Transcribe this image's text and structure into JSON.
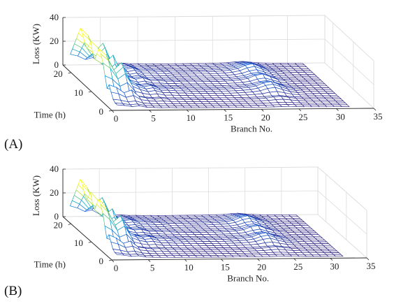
{
  "chart_data": [
    {
      "type": "surface",
      "panel_label": "(A)",
      "zlabel": "Loss (KW)",
      "ylabel": "Time (h)",
      "xlabel": "Branch No.",
      "xticks": [
        "0",
        "5",
        "10",
        "15",
        "20",
        "25",
        "30",
        "35"
      ],
      "yticks": [
        "0",
        "10",
        "20"
      ],
      "zticks": [
        "0",
        "20",
        "40"
      ],
      "xlim": [
        0,
        35
      ],
      "ylim": [
        0,
        24
      ],
      "zlim": [
        0,
        40
      ],
      "grid": true,
      "colormap": "parula",
      "x": [
        1,
        2,
        3,
        4,
        5,
        6,
        7,
        8,
        9,
        10,
        11,
        12,
        13,
        14,
        15,
        16,
        17,
        18,
        19,
        20,
        21,
        22,
        23,
        24,
        25,
        26,
        27,
        28,
        29,
        30,
        31,
        32
      ],
      "branch_profile": [
        30,
        25,
        15,
        20,
        8,
        5,
        3,
        4,
        2,
        2,
        1.5,
        1.5,
        1,
        1,
        1,
        1,
        1,
        1,
        1.2,
        1.5,
        2,
        3,
        5,
        6,
        4,
        2,
        1,
        0.5,
        0.3,
        0.2,
        0.1,
        0
      ],
      "time_scale": [
        0.1,
        0.1,
        0.15,
        0.3,
        0.45,
        0.3,
        0.6,
        0.9,
        1.1,
        1.2,
        1.0,
        0.8,
        0.9,
        1.2,
        1.0,
        0.9,
        1.0,
        1.2,
        1.3,
        1.1,
        0.9,
        0.7,
        0.5,
        0.3
      ],
      "notes_values_approx": true
    },
    {
      "type": "surface",
      "panel_label": "(B)",
      "zlabel": "Loss (KW)",
      "ylabel": "Time (h)",
      "xlabel": "Branch No.",
      "xticks": [
        "0",
        "5",
        "10",
        "15",
        "20",
        "25",
        "30",
        "35"
      ],
      "yticks": [
        "0",
        "10",
        "20"
      ],
      "zticks": [
        "0",
        "20",
        "40"
      ],
      "xlim": [
        0,
        35
      ],
      "ylim": [
        0,
        24
      ],
      "zlim": [
        0,
        40
      ],
      "grid": true,
      "colormap": "parula",
      "x": [
        1,
        2,
        3,
        4,
        5,
        6,
        7,
        8,
        9,
        10,
        11,
        12,
        13,
        14,
        15,
        16,
        17,
        18,
        19,
        20,
        21,
        22,
        23,
        24,
        25,
        26,
        27,
        28,
        29,
        30,
        31,
        32
      ],
      "branch_profile": [
        30,
        24,
        14,
        18,
        7,
        4.5,
        3,
        3.5,
        2,
        2,
        1.5,
        1.5,
        1,
        1,
        1,
        1,
        1,
        1,
        1.2,
        1.4,
        1.8,
        2.6,
        4.5,
        5.5,
        3.5,
        2,
        1,
        0.5,
        0.3,
        0.2,
        0.1,
        0
      ],
      "time_scale": [
        0.1,
        0.1,
        0.15,
        0.3,
        0.45,
        0.3,
        0.6,
        0.9,
        1.1,
        1.2,
        1.0,
        0.8,
        0.9,
        1.2,
        1.0,
        0.9,
        1.0,
        1.2,
        1.3,
        1.1,
        0.9,
        0.7,
        0.5,
        0.3
      ],
      "notes_values_approx": true
    }
  ]
}
